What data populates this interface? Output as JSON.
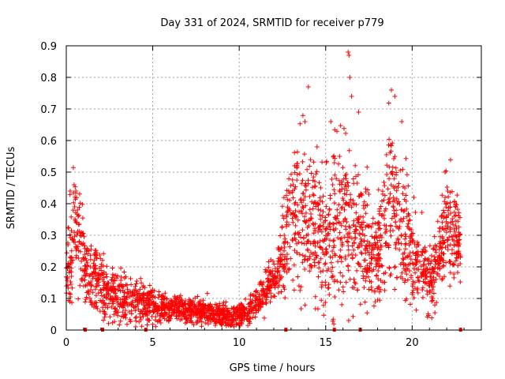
{
  "chart_data": {
    "type": "scatter",
    "title": "Day 331 of 2024, SRMTID for receiver p779",
    "xlabel": "GPS time / hours",
    "ylabel": "SRMTID / TECUs",
    "xlim": [
      0,
      24
    ],
    "ylim": [
      0,
      0.9
    ],
    "xticks": [
      0,
      5,
      10,
      15,
      20
    ],
    "yticks": [
      0,
      0.1,
      0.2,
      0.3,
      0.4,
      0.5,
      0.6,
      0.7,
      0.8,
      0.9
    ],
    "xtick_labels": [
      "0",
      "5",
      "10",
      "15",
      "20"
    ],
    "ytick_labels": [
      "0",
      "0.1",
      "0.2",
      "0.3",
      "0.4",
      "0.5",
      "0.6",
      "0.7",
      "0.8",
      "0.9"
    ],
    "grid": true,
    "marker": "+",
    "color": "#ff0000",
    "series": [
      {
        "name": "SRMTID",
        "profile": [
          [
            0.0,
            0.2,
            0.06
          ],
          [
            0.4,
            0.28,
            0.1
          ],
          [
            0.6,
            0.34,
            0.1
          ],
          [
            1.2,
            0.18,
            0.05
          ],
          [
            2.0,
            0.15,
            0.05
          ],
          [
            2.5,
            0.12,
            0.04
          ],
          [
            3.5,
            0.1,
            0.04
          ],
          [
            4.5,
            0.08,
            0.03
          ],
          [
            6.0,
            0.07,
            0.02
          ],
          [
            8.0,
            0.06,
            0.02
          ],
          [
            9.5,
            0.04,
            0.015
          ],
          [
            10.5,
            0.06,
            0.02
          ],
          [
            11.5,
            0.12,
            0.03
          ],
          [
            12.2,
            0.18,
            0.03
          ],
          [
            12.8,
            0.3,
            0.1
          ],
          [
            13.5,
            0.4,
            0.12
          ],
          [
            14.0,
            0.32,
            0.12
          ],
          [
            15.0,
            0.3,
            0.12
          ],
          [
            16.0,
            0.38,
            0.15
          ],
          [
            17.0,
            0.3,
            0.1
          ],
          [
            18.0,
            0.25,
            0.08
          ],
          [
            18.8,
            0.4,
            0.14
          ],
          [
            19.5,
            0.3,
            0.1
          ],
          [
            20.5,
            0.2,
            0.06
          ],
          [
            21.0,
            0.15,
            0.06
          ],
          [
            21.5,
            0.22,
            0.06
          ],
          [
            22.0,
            0.32,
            0.09
          ],
          [
            22.8,
            0.28,
            0.05
          ]
        ],
        "x": [
          0.1,
          0.3,
          0.45,
          0.55,
          0.65,
          0.8,
          1.4,
          2.1,
          3.0,
          4.2,
          5.5,
          7.0,
          8.5,
          9.6,
          10.2,
          11.0,
          12.0,
          12.6,
          13.2,
          13.8,
          14.0,
          14.5,
          15.3,
          15.8,
          16.3,
          16.35,
          16.4,
          16.5,
          16.9,
          17.5,
          18.5,
          18.8,
          19.0,
          19.4,
          20.1,
          20.6,
          21.2,
          21.9,
          22.2,
          22.7
        ],
        "y": [
          0.27,
          0.17,
          0.46,
          0.44,
          0.38,
          0.3,
          0.2,
          0.16,
          0.13,
          0.09,
          0.07,
          0.06,
          0.05,
          0.03,
          0.07,
          0.1,
          0.17,
          0.3,
          0.52,
          0.66,
          0.77,
          0.58,
          0.66,
          0.55,
          0.88,
          0.87,
          0.8,
          0.74,
          0.69,
          0.43,
          0.33,
          0.76,
          0.74,
          0.66,
          0.42,
          0.25,
          0.1,
          0.5,
          0.39,
          0.3
        ]
      }
    ],
    "zero_points_x": [
      1.1,
      2.1,
      4.6,
      12.7,
      15.5,
      17.0,
      22.8
    ]
  }
}
